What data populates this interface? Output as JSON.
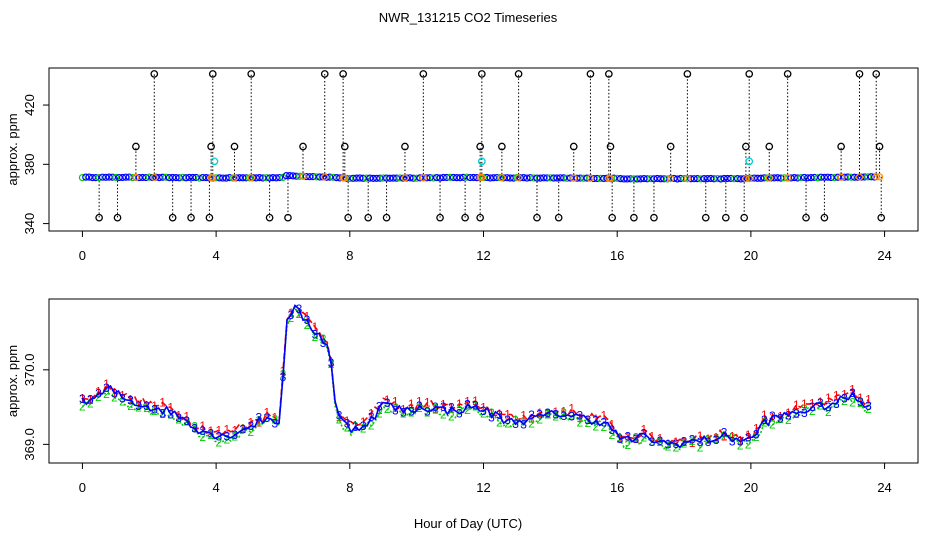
{
  "chart_data": [
    {
      "type": "scatter",
      "title": "NWR_131215  CO2 Timeseries",
      "xlabel": "",
      "ylabel": "approx. ppm",
      "xlim": [
        -1,
        25
      ],
      "ylim": [
        335,
        445
      ],
      "xticks": [
        "0",
        "4",
        "8",
        "12",
        "16",
        "20",
        "24"
      ],
      "yticks": [
        "340",
        "380",
        "420"
      ],
      "grid": false,
      "baseline_segments": [
        {
          "x": [
            0,
            2
          ],
          "y": [
            371.2,
            371.2
          ]
        },
        {
          "x": [
            2,
            4
          ],
          "y": [
            371.2,
            370.8
          ]
        },
        {
          "x": [
            4,
            6
          ],
          "y": [
            370.8,
            371.0
          ]
        },
        {
          "x": [
            6,
            7.5
          ],
          "y": [
            372.5,
            371.2
          ]
        },
        {
          "x": [
            7.5,
            8
          ],
          "y": [
            371.2,
            370.5
          ]
        },
        {
          "x": [
            8,
            12
          ],
          "y": [
            370.5,
            371.2
          ]
        },
        {
          "x": [
            12,
            16
          ],
          "y": [
            371.0,
            370.5
          ]
        },
        {
          "x": [
            16,
            20
          ],
          "y": [
            370.3,
            370.3
          ]
        },
        {
          "x": [
            20,
            24
          ],
          "y": [
            370.6,
            371.6
          ]
        }
      ],
      "spikes_high": [
        2.15,
        3.9,
        5.05,
        7.25,
        7.8,
        10.2,
        11.95,
        13.05,
        15.2,
        15.75,
        18.1,
        19.95,
        21.1,
        23.25,
        23.75
      ],
      "spikes_mid": [
        1.6,
        3.85,
        4.55,
        6.6,
        7.85,
        9.65,
        11.9,
        12.55,
        14.7,
        15.8,
        17.6,
        19.85,
        20.55,
        22.7,
        23.85
      ],
      "spikes_low": [
        0.5,
        1.05,
        2.7,
        3.25,
        3.8,
        5.6,
        6.15,
        7.95,
        8.55,
        9.1,
        10.7,
        11.45,
        11.9,
        13.6,
        14.25,
        15.85,
        16.5,
        17.1,
        18.65,
        19.25,
        19.8,
        21.65,
        22.2,
        23.9
      ],
      "spike_levels": {
        "high": 441,
        "mid": 392,
        "low": 344
      },
      "cyan_points": [
        {
          "x": 3.95,
          "y": 382
        },
        {
          "x": 11.95,
          "y": 382
        },
        {
          "x": 19.95,
          "y": 382
        }
      ]
    },
    {
      "type": "line",
      "title": "",
      "xlabel": "Hour of Day (UTC)",
      "ylabel": "approx. ppm",
      "xlim": [
        -1,
        25
      ],
      "ylim": [
        368.75,
        370.95
      ],
      "xticks": [
        "0",
        "4",
        "8",
        "12",
        "16",
        "20",
        "24"
      ],
      "yticks": [
        "369.0",
        "370.0"
      ],
      "grid": false,
      "profile": [
        {
          "x": 0.0,
          "y": 369.55
        },
        {
          "x": 0.5,
          "y": 369.65
        },
        {
          "x": 0.8,
          "y": 369.75
        },
        {
          "x": 1.3,
          "y": 369.6
        },
        {
          "x": 2.0,
          "y": 369.5
        },
        {
          "x": 2.6,
          "y": 369.45
        },
        {
          "x": 3.0,
          "y": 369.35
        },
        {
          "x": 3.5,
          "y": 369.2
        },
        {
          "x": 4.2,
          "y": 369.1
        },
        {
          "x": 4.8,
          "y": 369.2
        },
        {
          "x": 5.5,
          "y": 369.35
        },
        {
          "x": 5.9,
          "y": 369.3
        },
        {
          "x": 6.1,
          "y": 370.6
        },
        {
          "x": 6.3,
          "y": 370.85
        },
        {
          "x": 6.8,
          "y": 370.6
        },
        {
          "x": 7.4,
          "y": 370.3
        },
        {
          "x": 7.6,
          "y": 369.4
        },
        {
          "x": 8.0,
          "y": 369.2
        },
        {
          "x": 8.6,
          "y": 369.3
        },
        {
          "x": 9.0,
          "y": 369.55
        },
        {
          "x": 9.6,
          "y": 369.45
        },
        {
          "x": 10.3,
          "y": 369.5
        },
        {
          "x": 11.0,
          "y": 369.45
        },
        {
          "x": 11.8,
          "y": 369.5
        },
        {
          "x": 12.3,
          "y": 369.4
        },
        {
          "x": 12.8,
          "y": 369.3
        },
        {
          "x": 13.5,
          "y": 369.35
        },
        {
          "x": 14.3,
          "y": 369.42
        },
        {
          "x": 15.0,
          "y": 369.35
        },
        {
          "x": 15.6,
          "y": 369.3
        },
        {
          "x": 16.2,
          "y": 369.05
        },
        {
          "x": 16.8,
          "y": 369.1
        },
        {
          "x": 17.5,
          "y": 369.0
        },
        {
          "x": 18.5,
          "y": 369.05
        },
        {
          "x": 19.2,
          "y": 369.1
        },
        {
          "x": 20.0,
          "y": 369.05
        },
        {
          "x": 20.4,
          "y": 369.3
        },
        {
          "x": 21.5,
          "y": 369.45
        },
        {
          "x": 22.5,
          "y": 369.55
        },
        {
          "x": 23.0,
          "y": 369.65
        },
        {
          "x": 23.6,
          "y": 369.5
        }
      ],
      "series": [
        {
          "name": "1",
          "color": "#ff0000"
        },
        {
          "name": "2",
          "color": "#00cd00"
        },
        {
          "name": "3",
          "color": "#0000ff"
        }
      ]
    }
  ]
}
